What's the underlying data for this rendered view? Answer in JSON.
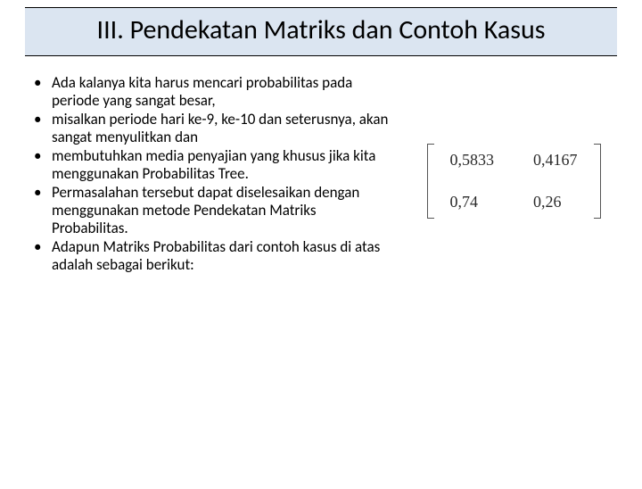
{
  "title": "III. Pendekatan Matriks dan Contoh Kasus",
  "bullets": [
    "Ada kalanya kita harus mencari probabilitas pada periode yang sangat besar,",
    "misalkan periode hari ke-9, ke-10 dan seterusnya, akan sangat menyulitkan dan",
    "membutuhkan media penyajian yang khusus jika kita menggunakan Probabilitas Tree.",
    "Permasalahan tersebut dapat diselesaikan dengan menggunakan metode Pendekatan Matriks Probabilitas.",
    "Adapun Matriks Probabilitas dari contoh kasus di atas adalah sebagai berikut:"
  ],
  "matrix": {
    "r0c0": "0,5833",
    "r0c1": "0,4167",
    "r1c0": "0,74",
    "r1c1": "0,26"
  }
}
